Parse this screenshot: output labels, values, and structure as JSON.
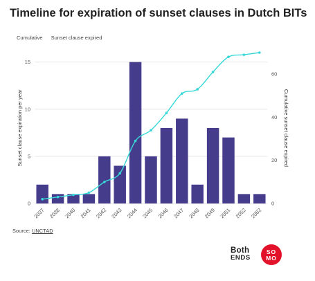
{
  "title": "Timeline for expiration of sunset clauses in Dutch BITs",
  "legend": {
    "cumulative_label": "Cumulative",
    "expired_label": "Sunset clause expired"
  },
  "source": {
    "prefix": "Source: ",
    "link_text": "UNCTAD"
  },
  "logos": {
    "both_ends_line1": "Both",
    "both_ends_line2": "ENDS",
    "somo_line1": "SO",
    "somo_line2": "MO"
  },
  "colors": {
    "bars": "#463c8c",
    "line": "#37d8d8",
    "grid": "#e6e6e6",
    "text": "#555555"
  },
  "chart_data": {
    "type": "bar",
    "categories": [
      "2037",
      "2038",
      "2040",
      "2041",
      "2042",
      "2043",
      "2044",
      "2045",
      "2046",
      "2047",
      "2048",
      "2049",
      "2051",
      "2052",
      "2062"
    ],
    "values": [
      2,
      1,
      1,
      1,
      5,
      4,
      15,
      5,
      8,
      9,
      2,
      8,
      7,
      1,
      1
    ],
    "cumulative": [
      2,
      3,
      4,
      5,
      10,
      14,
      29,
      34,
      42,
      51,
      53,
      61,
      68,
      69,
      70
    ],
    "ylabel": "Sunset clause expiration per year",
    "y2label": "Cumulative sunset clause expired",
    "ylim": [
      0,
      16
    ],
    "y2lim": [
      0,
      70
    ],
    "yticks": [
      0,
      5,
      10,
      15
    ],
    "y2ticks": [
      0,
      20,
      40,
      60
    ],
    "grid": true,
    "legend_position": "top-left"
  }
}
